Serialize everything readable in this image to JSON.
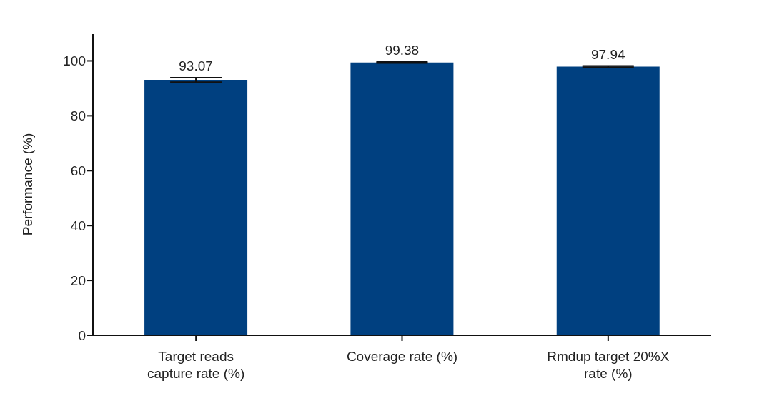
{
  "chart_data": {
    "type": "bar",
    "ylabel": "Performance (%)",
    "categories": [
      "Target reads capture rate (%)",
      "Coverage rate (%)",
      "Rmdup target 20%X rate (%)"
    ],
    "values": [
      93.07,
      99.38,
      97.94
    ],
    "errors": [
      0.8,
      0.2,
      0.2
    ],
    "color": "#004080",
    "data_labels": true,
    "ylim": [
      0,
      110
    ],
    "yticks": [
      0,
      20,
      40,
      60,
      80,
      100
    ],
    "grid": false,
    "legend": false
  }
}
